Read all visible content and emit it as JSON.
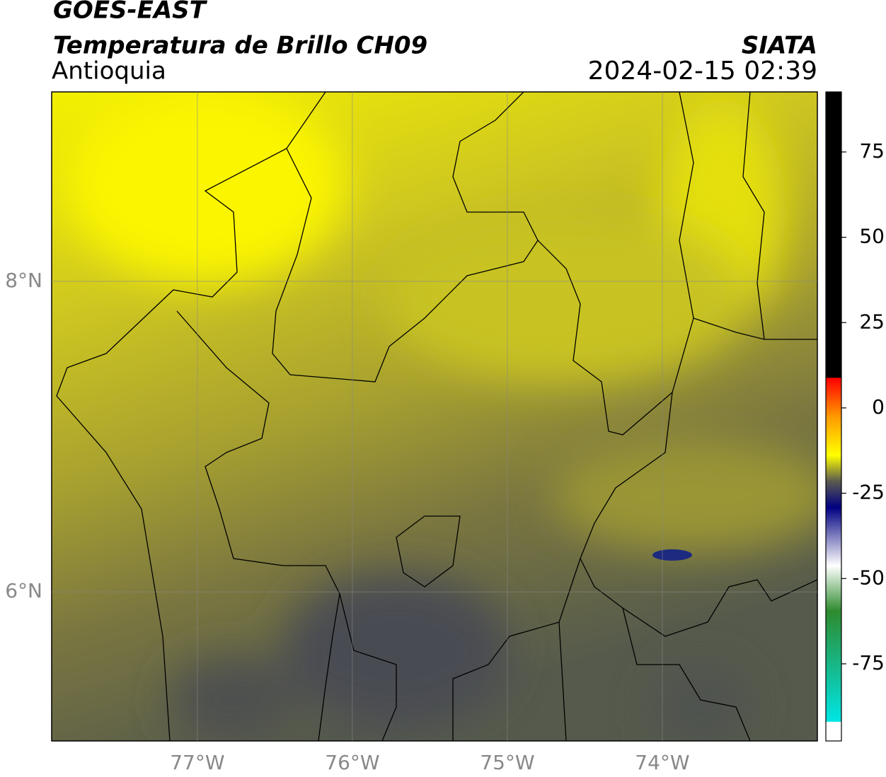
{
  "header": {
    "line1": "GOES-EAST",
    "title": "Temperatura de Brillo CH09",
    "region": "Antioquia",
    "source": "SIATA",
    "datetime": "2024-02-15 02:39"
  },
  "map": {
    "lon_range": [
      -77.94,
      -73.0
    ],
    "lat_range": [
      5.04,
      9.22
    ],
    "lon_ticks": [
      {
        "value": -77,
        "label": "77°W"
      },
      {
        "value": -76,
        "label": "76°W"
      },
      {
        "value": -75,
        "label": "75°W"
      },
      {
        "value": -74,
        "label": "74°W"
      }
    ],
    "lat_ticks": [
      {
        "value": 8,
        "label": "8°N"
      },
      {
        "value": 6,
        "label": "6°N"
      }
    ]
  },
  "colorbar": {
    "range": [
      -97.6,
      92.6
    ],
    "ticks": [
      -75,
      -50,
      -25,
      0,
      25,
      50,
      75
    ]
  }
}
